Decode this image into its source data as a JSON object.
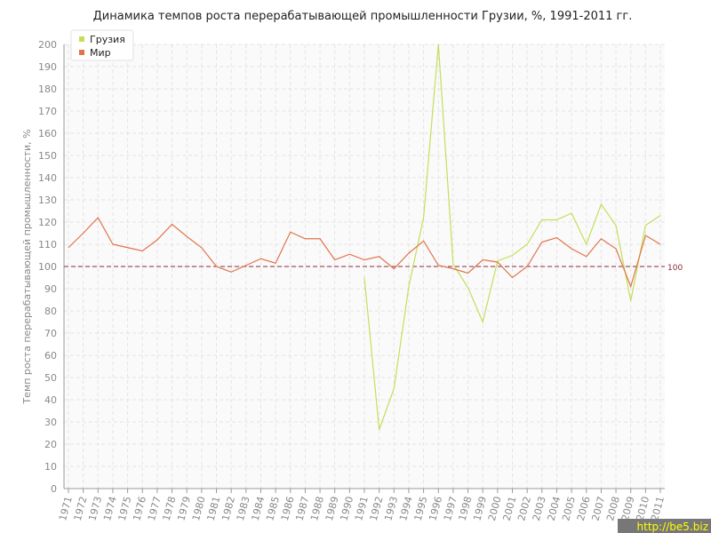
{
  "chart_data": {
    "type": "line",
    "title": "Динамика темпов роста перерабатывающей промышленности Грузии, %, 1991-2011 гг.",
    "y_label": "Темп роста перерабатывающей промышленности, %",
    "x": [
      1971,
      1972,
      1973,
      1974,
      1975,
      1976,
      1977,
      1978,
      1979,
      1980,
      1981,
      1982,
      1983,
      1984,
      1985,
      1986,
      1987,
      1988,
      1989,
      1990,
      1991,
      1992,
      1993,
      1994,
      1995,
      1996,
      1997,
      1998,
      1999,
      2000,
      2001,
      2002,
      2003,
      2004,
      2005,
      2006,
      2007,
      2008,
      2009,
      2010,
      2011
    ],
    "series": [
      {
        "name": "Грузия",
        "color": "#c3df5a",
        "values": [
          null,
          null,
          null,
          null,
          null,
          null,
          null,
          null,
          null,
          null,
          null,
          null,
          null,
          null,
          null,
          null,
          null,
          null,
          null,
          null,
          95,
          26.5,
          45,
          91,
          122,
          200,
          101,
          90.5,
          75,
          102.5,
          105,
          110,
          121,
          121,
          124,
          110,
          128,
          118.5,
          84.5,
          118.5,
          123
        ]
      },
      {
        "name": "Мир",
        "color": "#e0744a",
        "values": [
          108.5,
          115,
          122,
          110,
          108.5,
          107,
          112,
          119,
          113.5,
          108.5,
          100,
          97.5,
          100.5,
          103.5,
          101.5,
          115.5,
          112.5,
          112.5,
          103,
          105.5,
          103,
          104.5,
          99,
          106,
          111.5,
          100.5,
          99,
          97,
          103,
          102,
          95,
          100,
          111,
          113,
          108,
          104.5,
          112.5,
          108,
          91,
          114,
          110
        ]
      }
    ],
    "xlim": [
      1970.7,
      2011.3
    ],
    "xticks": [
      1971,
      1972,
      1973,
      1974,
      1975,
      1976,
      1977,
      1978,
      1979,
      1980,
      1981,
      1982,
      1983,
      1984,
      1985,
      1986,
      1987,
      1988,
      1989,
      1990,
      1991,
      1992,
      1993,
      1994,
      1995,
      1996,
      1997,
      1998,
      1999,
      2000,
      2001,
      2002,
      2003,
      2004,
      2005,
      2006,
      2007,
      2008,
      2009,
      2010,
      2011
    ],
    "ylim": [
      0,
      200
    ],
    "yticks": [
      0,
      10,
      20,
      30,
      40,
      50,
      60,
      70,
      80,
      90,
      100,
      110,
      120,
      130,
      140,
      150,
      160,
      170,
      180,
      190,
      200
    ],
    "reference_line": 100,
    "reference_color": "#8b2a3a",
    "grid": true,
    "legend": "top-left",
    "watermark": "http://be5.biz"
  }
}
